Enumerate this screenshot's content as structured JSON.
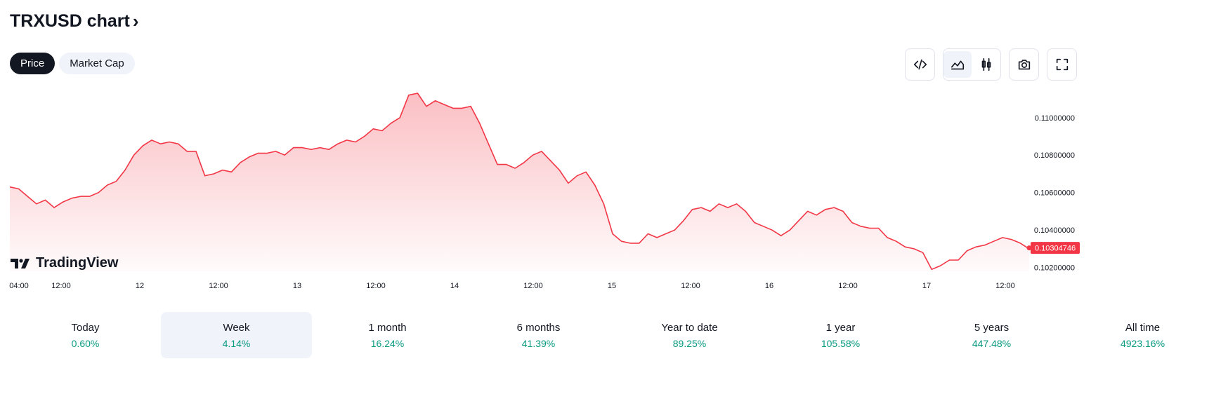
{
  "header": {
    "title": "TRXUSD chart"
  },
  "tabs": [
    {
      "label": "Price",
      "active": true
    },
    {
      "label": "Market Cap",
      "active": false
    }
  ],
  "toolbar": {
    "embed_icon": "code-icon",
    "area_icon": "area-chart-icon",
    "candle_icon": "candlestick-icon",
    "snapshot_icon": "camera-icon",
    "fullscreen_icon": "fullscreen-icon"
  },
  "logo": {
    "text": "TradingView"
  },
  "colors": {
    "line": "#f23645",
    "accent_dark": "#131722",
    "positive": "#089981"
  },
  "chart_data": {
    "type": "area",
    "ylim": [
      0.1018,
      0.1116
    ],
    "x_ticks": [
      "04:00",
      "12:00",
      "12",
      "12:00",
      "13",
      "12:00",
      "14",
      "12:00",
      "15",
      "12:00",
      "16",
      "12:00",
      "17",
      "12:00"
    ],
    "y_ticks": [
      "0.10200000",
      "0.10400000",
      "0.10600000",
      "0.10800000",
      "0.11000000"
    ],
    "last_value": 0.10304746,
    "last_value_label": "0.10304746",
    "values": [
      0.1063,
      0.1062,
      0.1058,
      0.1054,
      0.1056,
      0.1052,
      0.1055,
      0.1057,
      0.1058,
      0.1058,
      0.106,
      0.1064,
      0.1066,
      0.1072,
      0.108,
      0.1085,
      0.1088,
      0.1086,
      0.1087,
      0.1086,
      0.1082,
      0.1082,
      0.1069,
      0.107,
      0.1072,
      0.1071,
      0.1076,
      0.1079,
      0.1081,
      0.1081,
      0.1082,
      0.108,
      0.1084,
      0.1084,
      0.1083,
      0.1084,
      0.1083,
      0.1086,
      0.1088,
      0.1087,
      0.109,
      0.1094,
      0.1093,
      0.1097,
      0.11,
      0.1112,
      0.1113,
      0.1106,
      0.1109,
      0.1107,
      0.1105,
      0.1105,
      0.1106,
      0.1097,
      0.1086,
      0.1075,
      0.1075,
      0.1073,
      0.1076,
      0.108,
      0.1082,
      0.1077,
      0.1072,
      0.1065,
      0.1069,
      0.1071,
      0.1064,
      0.1054,
      0.1038,
      0.1034,
      0.1033,
      0.1033,
      0.1038,
      0.1036,
      0.1038,
      0.104,
      0.1045,
      0.1051,
      0.1052,
      0.105,
      0.1054,
      0.1052,
      0.1054,
      0.105,
      0.1044,
      0.1042,
      0.104,
      0.1037,
      0.104,
      0.1045,
      0.105,
      0.1048,
      0.1051,
      0.1052,
      0.105,
      0.1044,
      0.1042,
      0.1041,
      0.1041,
      0.1036,
      0.1034,
      0.1031,
      0.103,
      0.1028,
      0.1019,
      0.1021,
      0.1024,
      0.1024,
      0.1029,
      0.1031,
      0.1032,
      0.1034,
      0.1036,
      0.1035,
      0.1033,
      0.103
    ]
  },
  "periods": [
    {
      "label": "Today",
      "value": "0.60%",
      "active": false
    },
    {
      "label": "Week",
      "value": "4.14%",
      "active": true
    },
    {
      "label": "1 month",
      "value": "16.24%",
      "active": false
    },
    {
      "label": "6 months",
      "value": "41.39%",
      "active": false
    },
    {
      "label": "Year to date",
      "value": "89.25%",
      "active": false
    },
    {
      "label": "1 year",
      "value": "105.58%",
      "active": false
    },
    {
      "label": "5 years",
      "value": "447.48%",
      "active": false
    },
    {
      "label": "All time",
      "value": "4923.16%",
      "active": false
    }
  ]
}
